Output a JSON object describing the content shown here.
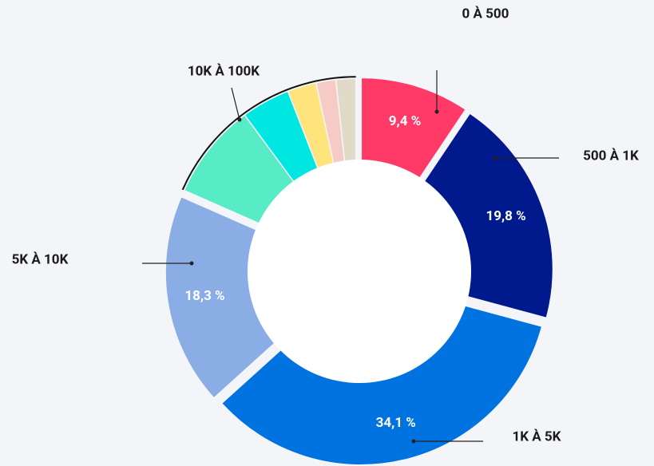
{
  "chart_data": {
    "type": "donut",
    "categories": [
      "0 À 500",
      "500 À 1K",
      "1K À 5K",
      "5K À 10K",
      null,
      null,
      null,
      null,
      null
    ],
    "values": [
      9.4,
      19.8,
      34.1,
      18.3,
      8.3,
      4.2,
      2.5,
      1.7,
      1.7
    ],
    "value_labels": [
      "9,4 %",
      "19,8 %",
      "34,1 %",
      "18,3 %",
      null,
      null,
      null,
      null,
      null
    ],
    "colors": [
      "#ff3a66",
      "#001a8e",
      "#0073e0",
      "#8badE6",
      "#57ecc6",
      "#00e6e0",
      "#ffe37c",
      "#f6cbc5",
      "#e2dac8"
    ],
    "annotations": [
      {
        "text": "10K À 100K"
      }
    ]
  }
}
